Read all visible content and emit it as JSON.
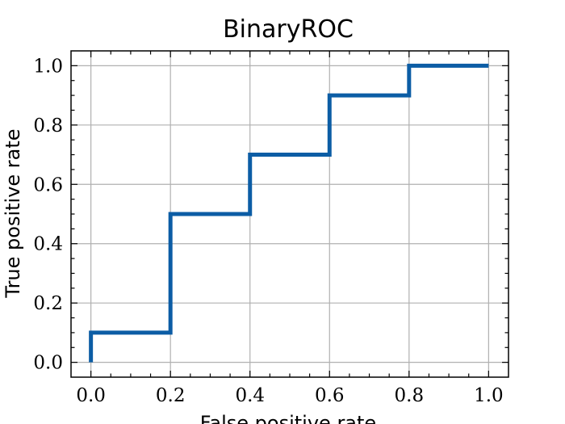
{
  "chart_data": {
    "type": "line",
    "title": "BinaryROC",
    "xlabel": "False positive rate",
    "ylabel": "True positive rate",
    "xlim": [
      -0.05,
      1.05
    ],
    "ylim": [
      -0.05,
      1.05
    ],
    "grid": true,
    "x_ticks": [
      "0.0",
      "0.2",
      "0.4",
      "0.6",
      "0.8",
      "1.0"
    ],
    "y_ticks": [
      "0.0",
      "0.2",
      "0.4",
      "0.6",
      "0.8",
      "1.0"
    ],
    "series": [
      {
        "x": [
          0.0,
          0.0,
          0.2,
          0.2,
          0.4,
          0.4,
          0.6,
          0.6,
          0.8,
          0.8,
          1.0
        ],
        "y": [
          0.0,
          0.1,
          0.1,
          0.5,
          0.5,
          0.7,
          0.7,
          0.9,
          0.9,
          1.0,
          1.0
        ],
        "color": "#0c5da5"
      }
    ]
  }
}
